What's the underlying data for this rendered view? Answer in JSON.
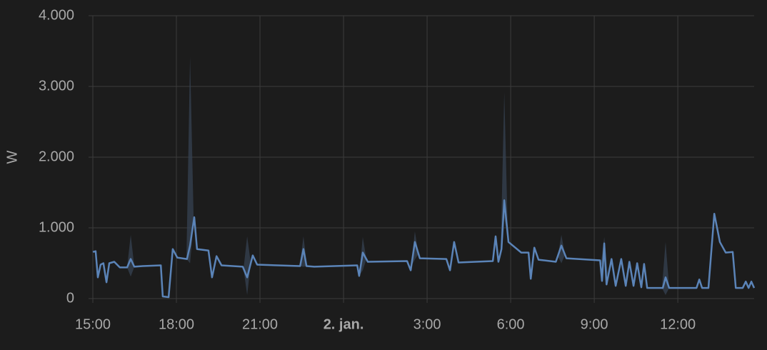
{
  "chart_data": {
    "type": "line",
    "ylabel": "W",
    "xlim": [
      15,
      38.74
    ],
    "xticks": [
      {
        "value": 15,
        "label": "15:00"
      },
      {
        "value": 18,
        "label": "18:00"
      },
      {
        "value": 21,
        "label": "21:00"
      },
      {
        "value": 24,
        "label": "2. jan.",
        "bold": true
      },
      {
        "value": 27,
        "label": "3:00"
      },
      {
        "value": 30,
        "label": "6:00"
      },
      {
        "value": 33,
        "label": "9:00"
      },
      {
        "value": 36,
        "label": "12:00"
      }
    ],
    "ylim": [
      0,
      4000
    ],
    "yticks": [
      0,
      {
        "value": 1000,
        "label": "1.000"
      },
      {
        "value": 2000,
        "label": "2.000"
      },
      {
        "value": 3000,
        "label": "3.000"
      },
      {
        "value": 4000,
        "label": "4.000"
      }
    ],
    "grid": true,
    "series": [
      {
        "color": "#5b84b8",
        "x": [
          15.0,
          15.1,
          15.18,
          15.28,
          15.38,
          15.49,
          15.59,
          15.77,
          15.97,
          16.23,
          16.36,
          16.49,
          16.79,
          17.44,
          17.51,
          17.72,
          17.87,
          18.03,
          18.38,
          18.49,
          18.64,
          18.74,
          19.15,
          19.28,
          19.44,
          19.62,
          20.38,
          20.54,
          20.74,
          20.9,
          22.44,
          22.56,
          22.67,
          22.95,
          24.49,
          24.56,
          24.69,
          24.87,
          26.28,
          26.41,
          26.56,
          26.74,
          27.69,
          27.82,
          27.97,
          28.13,
          29.36,
          29.46,
          29.56,
          29.67,
          29.77,
          29.92,
          30.38,
          30.64,
          30.72,
          30.85,
          31.0,
          31.62,
          31.82,
          32.0,
          33.21,
          33.28,
          33.36,
          33.44,
          33.62,
          33.77,
          33.97,
          34.13,
          34.26,
          34.41,
          34.54,
          34.69,
          34.79,
          34.9,
          35.46,
          35.56,
          35.69,
          36.67,
          36.77,
          36.87,
          37.1,
          37.31,
          37.51,
          37.72,
          37.97,
          38.08,
          38.33,
          38.44,
          38.54,
          38.64,
          38.74
        ],
        "values": [
          660,
          670,
          300,
          480,
          500,
          230,
          500,
          520,
          440,
          440,
          560,
          450,
          460,
          470,
          30,
          20,
          700,
          580,
          560,
          750,
          1150,
          700,
          680,
          300,
          600,
          470,
          450,
          300,
          610,
          480,
          460,
          700,
          460,
          450,
          470,
          320,
          650,
          520,
          530,
          400,
          800,
          570,
          560,
          400,
          800,
          510,
          530,
          880,
          520,
          700,
          1390,
          800,
          650,
          650,
          280,
          720,
          550,
          520,
          750,
          570,
          540,
          250,
          780,
          200,
          560,
          180,
          560,
          180,
          520,
          180,
          500,
          160,
          490,
          150,
          150,
          300,
          150,
          150,
          270,
          150,
          150,
          1200,
          800,
          650,
          660,
          150,
          150,
          240,
          150,
          240,
          150
        ]
      }
    ],
    "band": {
      "color": "#34404f",
      "x": [
        16.36,
        18.49,
        20.54,
        22.56,
        24.69,
        26.56,
        29.77,
        31.82,
        33.36,
        35.56
      ],
      "upper": [
        900,
        3420,
        880,
        880,
        870,
        950,
        2920,
        900,
        870,
        800
      ]
    }
  }
}
